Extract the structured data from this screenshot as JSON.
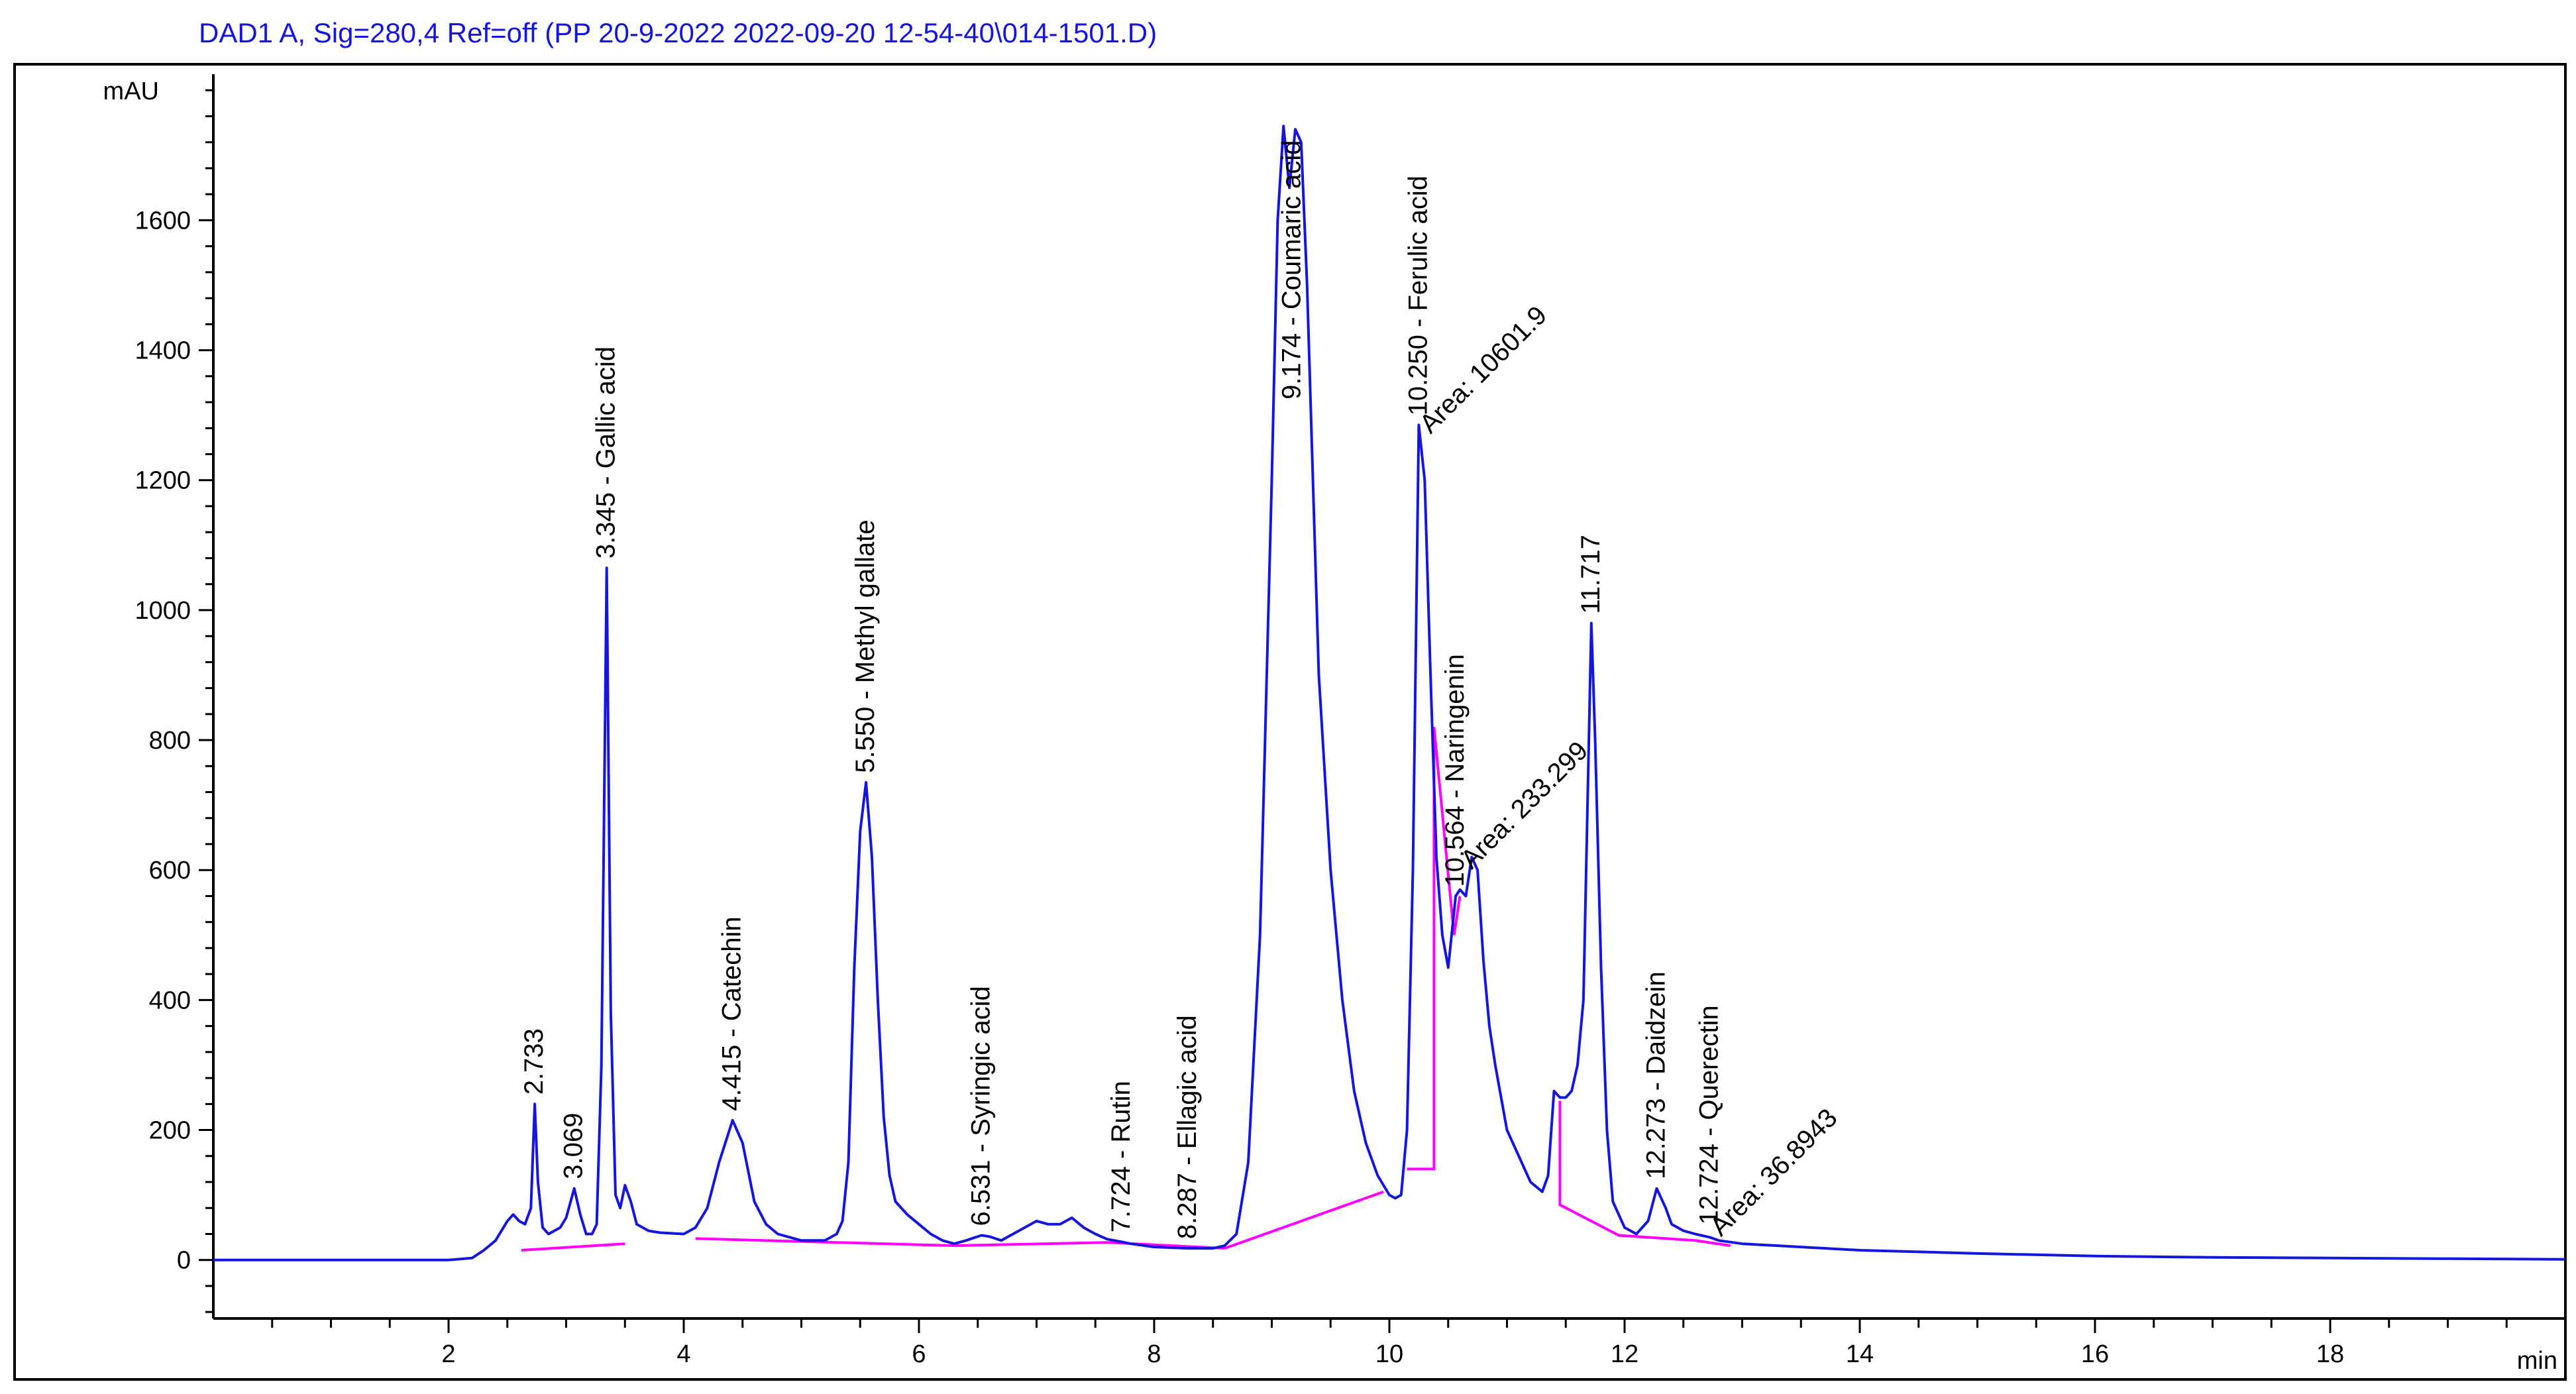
{
  "chart_data": {
    "type": "line",
    "title": "DAD1 A, Sig=280,4 Ref=off (PP 20-9-2022 2022-09-20 12-54-40\\014-1501.D)",
    "ylabel": "mAU",
    "xlabel": "min",
    "xlim": [
      0,
      20
    ],
    "ylim": [
      -90,
      1840
    ],
    "x_ticks": [
      2,
      4,
      6,
      8,
      10,
      12,
      14,
      16,
      18
    ],
    "y_ticks": [
      0,
      200,
      400,
      600,
      800,
      1000,
      1200,
      1400,
      1600
    ],
    "grid": false,
    "colors": {
      "signal": "#1515e0",
      "baseline": "#ff00ff",
      "title": "#1515e0",
      "axis": "#000000"
    },
    "signal": {
      "x": [
        0.0,
        2.0,
        2.2,
        2.3,
        2.4,
        2.5,
        2.55,
        2.6,
        2.65,
        2.7,
        2.733,
        2.76,
        2.8,
        2.85,
        2.9,
        2.95,
        3.0,
        3.069,
        3.12,
        3.17,
        3.22,
        3.26,
        3.3,
        3.345,
        3.38,
        3.42,
        3.46,
        3.5,
        3.55,
        3.6,
        3.7,
        3.8,
        4.0,
        4.1,
        4.2,
        4.3,
        4.415,
        4.5,
        4.6,
        4.7,
        4.8,
        5.0,
        5.2,
        5.3,
        5.35,
        5.4,
        5.45,
        5.5,
        5.55,
        5.6,
        5.65,
        5.7,
        5.75,
        5.8,
        5.9,
        6.0,
        6.1,
        6.2,
        6.3,
        6.4,
        6.531,
        6.6,
        6.7,
        6.8,
        7.0,
        7.1,
        7.2,
        7.3,
        7.4,
        7.5,
        7.6,
        7.724,
        7.8,
        8.0,
        8.287,
        8.5,
        8.6,
        8.7,
        8.8,
        8.9,
        9.0,
        9.05,
        9.1,
        9.15,
        9.2,
        9.25,
        9.3,
        9.35,
        9.4,
        9.5,
        9.6,
        9.7,
        9.8,
        9.9,
        10.0,
        10.05,
        10.1,
        10.15,
        10.2,
        10.25,
        10.3,
        10.35,
        10.4,
        10.45,
        10.5,
        10.564,
        10.6,
        10.65,
        10.7,
        10.75,
        10.8,
        10.85,
        10.9,
        11.0,
        11.1,
        11.2,
        11.3,
        11.35,
        11.4,
        11.45,
        11.5,
        11.55,
        11.6,
        11.65,
        11.717,
        11.75,
        11.8,
        11.85,
        11.9,
        12.0,
        12.1,
        12.2,
        12.273,
        12.35,
        12.4,
        12.5,
        12.6,
        12.724,
        12.8,
        13.0,
        13.5,
        14.0,
        15.0,
        16.0,
        17.0,
        18.0,
        19.0,
        20.0
      ],
      "y": [
        0,
        0,
        3,
        15,
        30,
        60,
        70,
        60,
        55,
        80,
        240,
        120,
        50,
        40,
        45,
        50,
        65,
        110,
        70,
        40,
        40,
        55,
        300,
        1065,
        380,
        100,
        80,
        115,
        90,
        55,
        45,
        42,
        40,
        50,
        80,
        150,
        215,
        180,
        90,
        55,
        40,
        30,
        30,
        40,
        60,
        150,
        450,
        660,
        735,
        620,
        400,
        220,
        130,
        90,
        70,
        55,
        40,
        30,
        25,
        30,
        38,
        36,
        30,
        40,
        60,
        55,
        55,
        65,
        50,
        40,
        32,
        28,
        25,
        20,
        18,
        18,
        22,
        40,
        150,
        500,
        1200,
        1600,
        1745,
        1650,
        1740,
        1720,
        1500,
        1200,
        900,
        600,
        400,
        260,
        180,
        130,
        100,
        95,
        100,
        200,
        600,
        1285,
        1200,
        900,
        620,
        500,
        450,
        560,
        570,
        560,
        620,
        600,
        460,
        360,
        300,
        200,
        160,
        120,
        105,
        130,
        260,
        250,
        250,
        260,
        300,
        400,
        980,
        800,
        450,
        200,
        90,
        50,
        40,
        60,
        110,
        80,
        55,
        45,
        40,
        35,
        30,
        25,
        20,
        15,
        10,
        6,
        4,
        3,
        2,
        1
      ]
    },
    "baseline_segments": [
      [
        [
          2.62,
          15
        ],
        [
          3.5,
          25
        ]
      ],
      [
        [
          4.1,
          33
        ],
        [
          6.3,
          22
        ]
      ],
      [
        [
          6.3,
          22
        ],
        [
          7.6,
          27
        ]
      ],
      [
        [
          7.6,
          27
        ],
        [
          8.6,
          18
        ]
      ],
      [
        [
          8.6,
          18
        ],
        [
          9.95,
          105
        ]
      ],
      [
        [
          10.15,
          140
        ],
        [
          10.38,
          140
        ],
        [
          10.38,
          820
        ],
        [
          10.55,
          500
        ],
        [
          10.6,
          560
        ]
      ],
      [
        [
          11.45,
          245
        ],
        [
          11.45,
          85
        ],
        [
          11.95,
          38
        ],
        [
          12.6,
          30
        ],
        [
          12.9,
          22
        ]
      ]
    ],
    "peak_labels": [
      {
        "x": 2.733,
        "y": 240,
        "text": "2.733"
      },
      {
        "x": 3.069,
        "y": 110,
        "text": "3.069"
      },
      {
        "x": 3.345,
        "y": 1065,
        "text": "3.345 -  Gallic acid"
      },
      {
        "x": 4.415,
        "y": 215,
        "text": "4.415 -  Catechin"
      },
      {
        "x": 5.55,
        "y": 735,
        "text": "5.550 -  Methyl gallate"
      },
      {
        "x": 6.531,
        "y": 38,
        "text": "6.531 -  Syringic acid"
      },
      {
        "x": 7.724,
        "y": 28,
        "text": "7.724 -  Rutin"
      },
      {
        "x": 8.287,
        "y": 18,
        "text": "8.287 -  Ellagic acid"
      },
      {
        "x": 9.174,
        "y": 1310,
        "text": "9.174 -  Coumaric acid"
      },
      {
        "x": 10.25,
        "y": 1285,
        "text": "10.250 -  Ferulic acid"
      },
      {
        "x": 10.564,
        "y": 560,
        "text": "10.564 -  Naringenin"
      },
      {
        "x": 11.717,
        "y": 980,
        "text": "11.717"
      },
      {
        "x": 12.273,
        "y": 110,
        "text": "12.273 -  Daidzein"
      },
      {
        "x": 12.724,
        "y": 40,
        "text": "12.724 -  Querectin"
      }
    ],
    "area_labels": [
      {
        "x": 10.35,
        "y": 1270,
        "text": "Area: 10601.9"
      },
      {
        "x": 10.7,
        "y": 600,
        "text": "Area: 233.299"
      },
      {
        "x": 12.82,
        "y": 35,
        "text": "Area: 36.8943"
      }
    ]
  }
}
